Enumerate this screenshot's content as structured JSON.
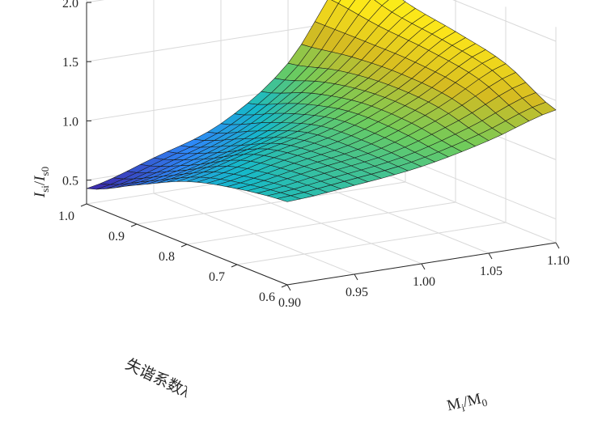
{
  "chart_data": {
    "type": "surface3d",
    "title": "",
    "zlabel": {
      "main": "I",
      "sub_main": "si",
      "sep": "/",
      "main2": "I",
      "sub_main2": "s0"
    },
    "xlabel": {
      "main": "M",
      "sub": "i",
      "sep": "/",
      "main2": "M",
      "sub2": "0"
    },
    "ylabel": "失谐系数λ",
    "x_ticks": [
      "0.90",
      "0.95",
      "1.00",
      "1.05",
      "1.10"
    ],
    "y_ticks": [
      "0.6",
      "0.7",
      "0.8",
      "0.9",
      "1.0"
    ],
    "z_ticks": [
      "0.5",
      "1.0",
      "1.5",
      "2.0"
    ],
    "xlim": [
      0.9,
      1.1
    ],
    "ylim": [
      0.6,
      1.0
    ],
    "zlim": [
      0.3,
      2.0
    ],
    "x": [
      0.9,
      0.95,
      1.0,
      1.05,
      1.1
    ],
    "y": [
      0.6,
      0.7,
      0.8,
      0.9,
      1.0
    ],
    "z": [
      [
        1.0,
        1.05,
        1.12,
        1.25,
        1.42
      ],
      [
        0.94,
        1.04,
        1.14,
        1.36,
        1.64
      ],
      [
        0.83,
        0.97,
        1.12,
        1.38,
        1.74
      ],
      [
        0.63,
        0.76,
        0.98,
        1.33,
        1.82
      ],
      [
        0.43,
        0.6,
        0.8,
        1.22,
        1.98
      ]
    ],
    "colormap": [
      "#3e26a8",
      "#2e87f7",
      "#16b9c9",
      "#6dcc5d",
      "#d5bb21",
      "#fbe41a",
      "#f9fb15"
    ],
    "grid": true
  }
}
